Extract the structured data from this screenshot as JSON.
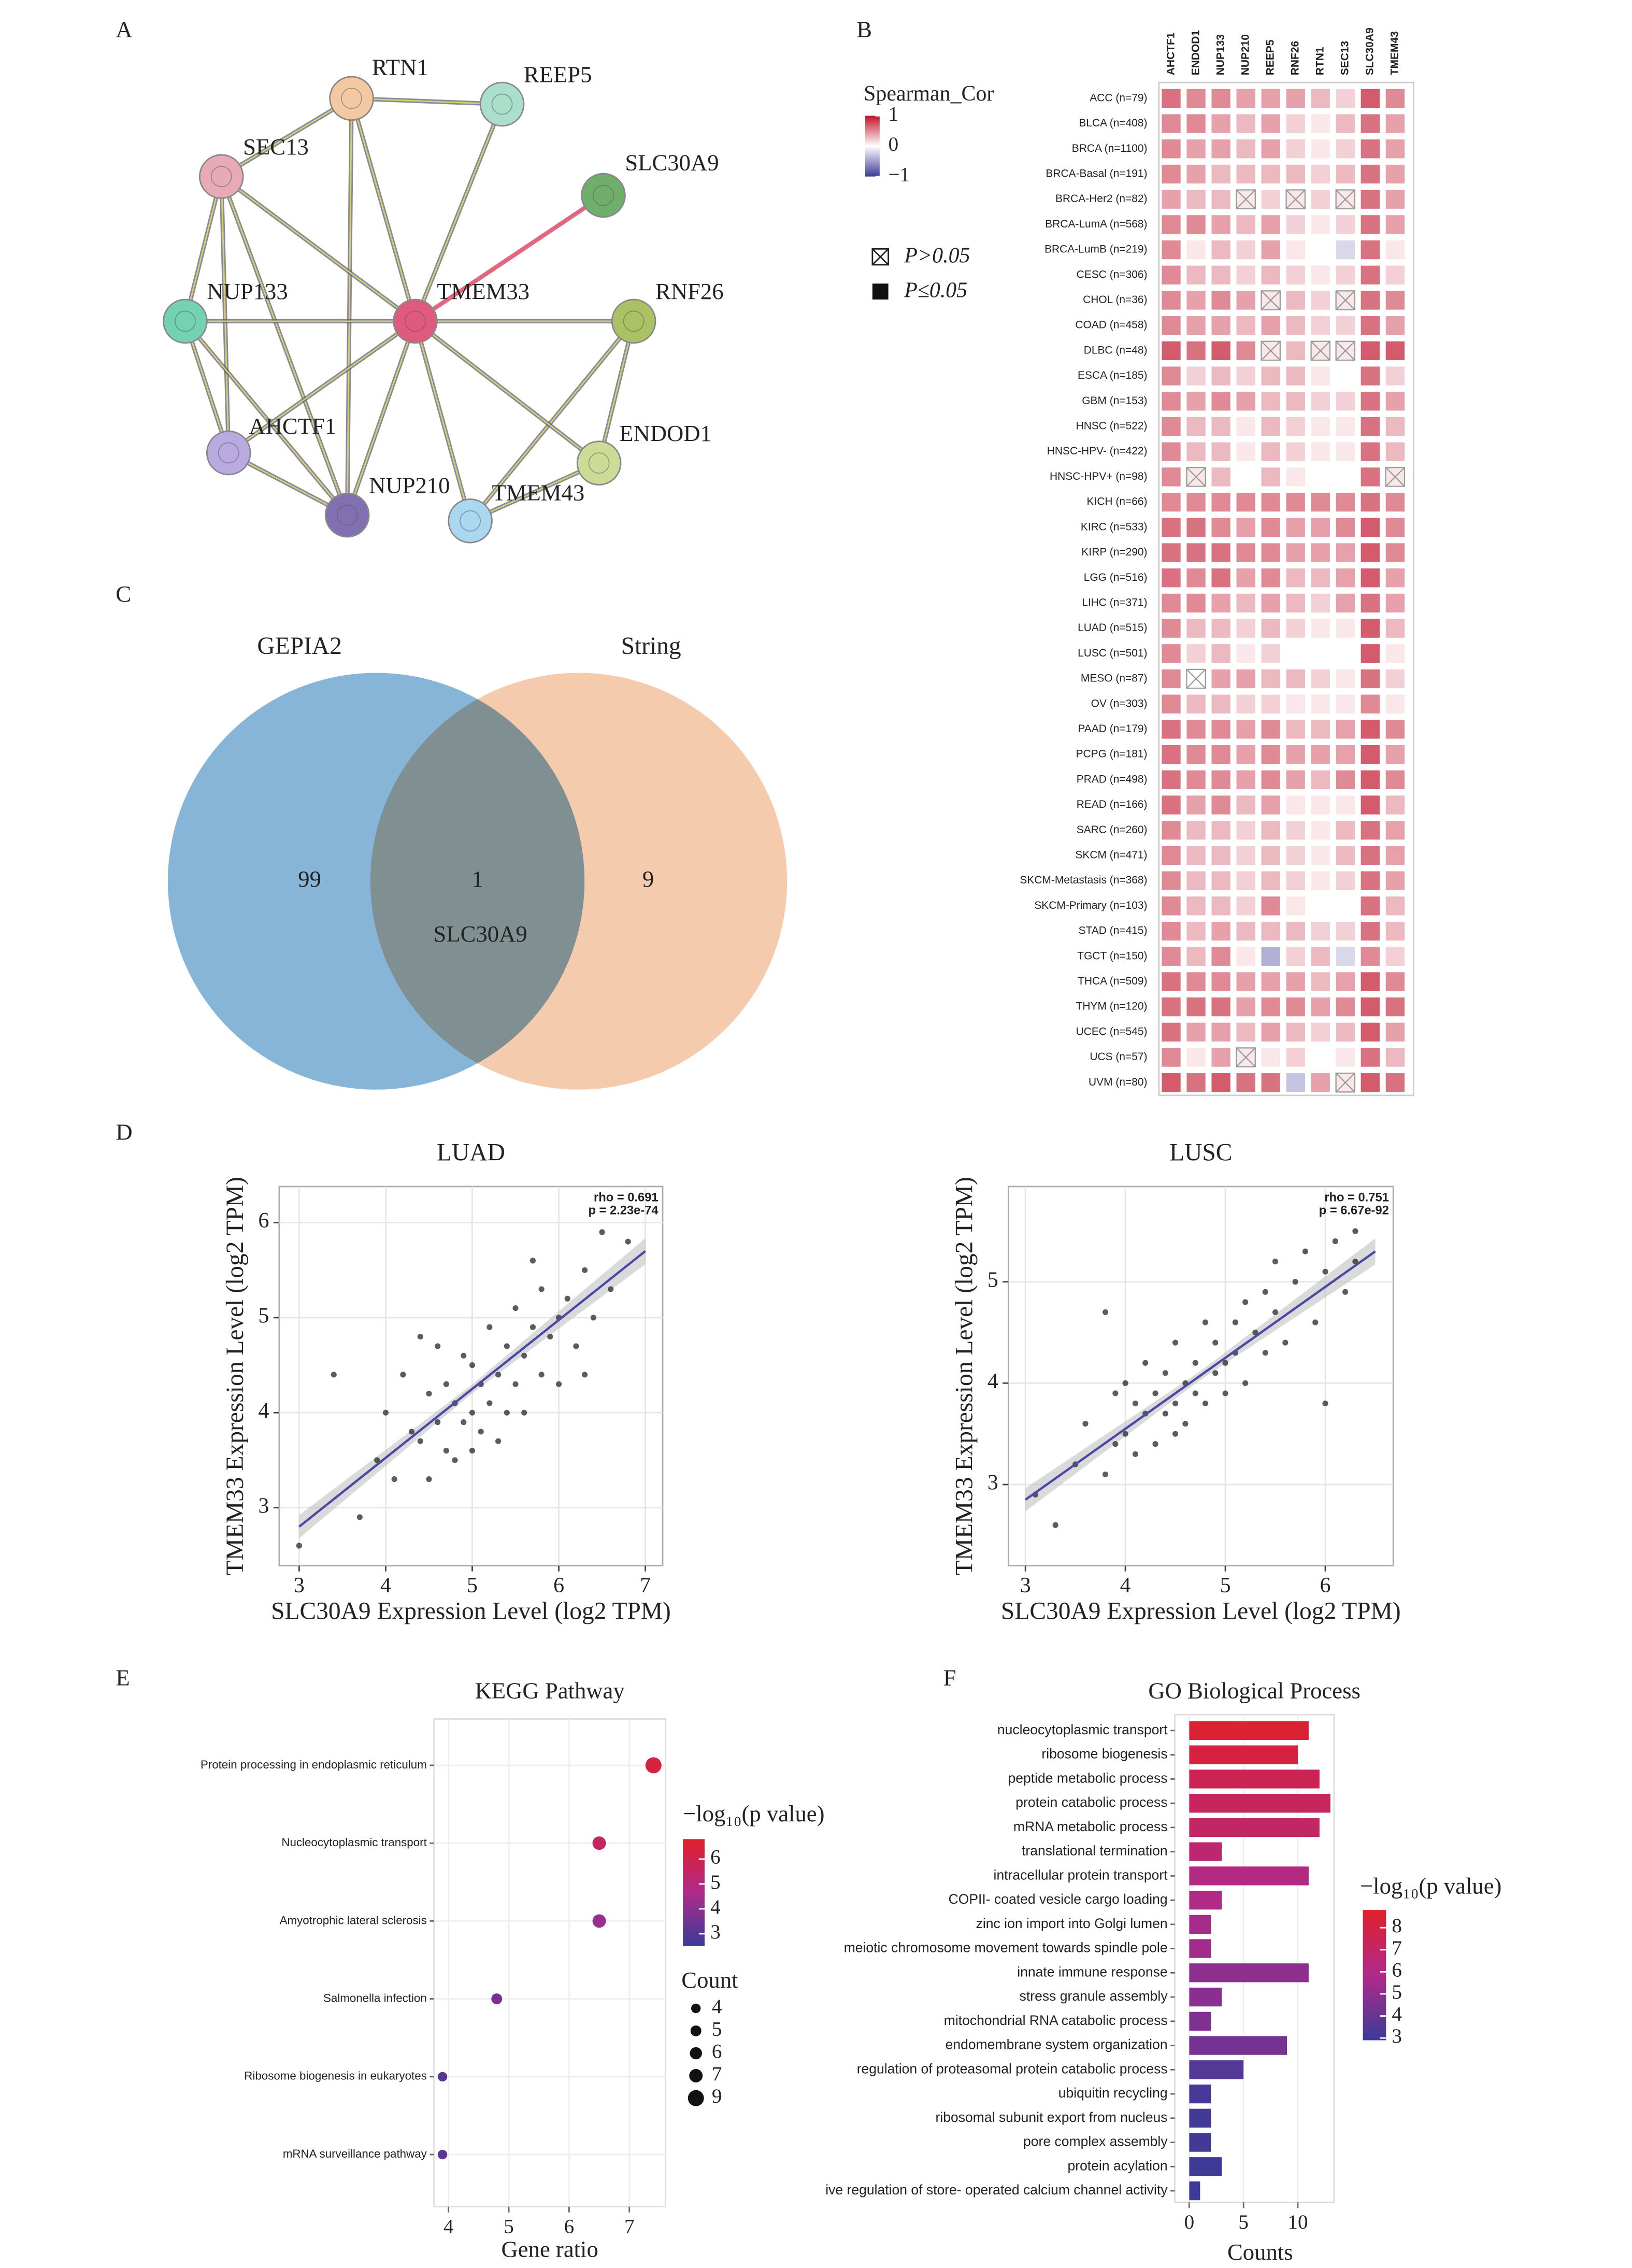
{
  "chart_data": [
    {
      "type": "network",
      "panel": "A",
      "nodes": [
        {
          "label": "RTN1",
          "color": "#f2c9a2"
        },
        {
          "label": "REEP5",
          "color": "#aadfcc"
        },
        {
          "label": "SEC13",
          "color": "#e9aab8"
        },
        {
          "label": "SLC30A9",
          "color": "#6fae6b"
        },
        {
          "label": "NUP133",
          "color": "#72d2b2"
        },
        {
          "label": "TMEM33",
          "color": "#e05a80"
        },
        {
          "label": "RNF26",
          "color": "#abc264"
        },
        {
          "label": "AHCTF1",
          "color": "#b9aae2"
        },
        {
          "label": "NUP210",
          "color": "#8070b2"
        },
        {
          "label": "ENDOD1",
          "color": "#ccdb96"
        },
        {
          "label": "TMEM43",
          "color": "#a9d8f0"
        }
      ]
    },
    {
      "type": "heatmap",
      "panel": "B",
      "columns": [
        "AHCTF1",
        "ENDOD1",
        "NUP133",
        "NUP210",
        "REEP5",
        "RNF26",
        "RTN1",
        "SEC13",
        "SLC30A9",
        "TMEM43"
      ],
      "rows": [
        "ACC (n=79)",
        "BLCA (n=408)",
        "BRCA (n=1100)",
        "BRCA-Basal (n=191)",
        "BRCA-Her2 (n=82)",
        "BRCA-LumA (n=568)",
        "BRCA-LumB (n=219)",
        "CESC (n=306)",
        "CHOL (n=36)",
        "COAD (n=458)",
        "DLBC (n=48)",
        "ESCA (n=185)",
        "GBM (n=153)",
        "HNSC (n=522)",
        "HNSC-HPV- (n=422)",
        "HNSC-HPV+ (n=98)",
        "KICH (n=66)",
        "KIRC (n=533)",
        "KIRP (n=290)",
        "LGG (n=516)",
        "LIHC (n=371)",
        "LUAD (n=515)",
        "LUSC (n=501)",
        "MESO (n=87)",
        "OV (n=303)",
        "PAAD (n=179)",
        "PCPG (n=181)",
        "PRAD (n=498)",
        "READ (n=166)",
        "SARC (n=260)",
        "SKCM (n=471)",
        "SKCM-Metastasis (n=368)",
        "SKCM-Primary (n=103)",
        "STAD (n=415)",
        "TGCT (n=150)",
        "THCA (n=509)",
        "THYM (n=120)",
        "UCEC (n=545)",
        "UCS (n=57)",
        "UVM (n=80)"
      ],
      "values": [
        [
          0.6,
          0.5,
          0.5,
          0.4,
          0.4,
          0.4,
          0.3,
          0.2,
          0.7,
          0.5
        ],
        [
          0.5,
          0.5,
          0.4,
          0.3,
          0.4,
          0.2,
          0.1,
          0.3,
          0.6,
          0.4
        ],
        [
          0.5,
          0.4,
          0.4,
          0.3,
          0.4,
          0.2,
          0.1,
          0.2,
          0.6,
          0.4
        ],
        [
          0.5,
          0.4,
          0.3,
          0.3,
          0.3,
          0.3,
          0.2,
          0.3,
          0.6,
          0.4
        ],
        [
          0.4,
          0.3,
          0.3,
          0.1,
          0.2,
          0.1,
          0.2,
          0.1,
          0.6,
          0.4
        ],
        [
          0.5,
          0.5,
          0.4,
          0.3,
          0.4,
          0.2,
          0.1,
          0.2,
          0.6,
          0.4
        ],
        [
          0.5,
          0.1,
          0.3,
          0.2,
          0.4,
          0.1,
          0,
          -0.2,
          0.6,
          0.1
        ],
        [
          0.5,
          0.3,
          0.3,
          0.2,
          0.3,
          0.2,
          0.1,
          0.2,
          0.6,
          0.2
        ],
        [
          0.5,
          0.4,
          0.5,
          0.4,
          0.1,
          0.3,
          0.2,
          0.1,
          0.6,
          0.5
        ],
        [
          0.5,
          0.4,
          0.4,
          0.3,
          0.4,
          0.3,
          0.2,
          0.2,
          0.6,
          0.4
        ],
        [
          0.7,
          0.6,
          0.7,
          0.5,
          0.1,
          0.3,
          0.1,
          0.1,
          0.7,
          0.7
        ],
        [
          0.5,
          0.2,
          0.3,
          0.2,
          0.3,
          0.3,
          0.1,
          0,
          0.6,
          0.2
        ],
        [
          0.5,
          0.4,
          0.5,
          0.4,
          0.3,
          0.3,
          0.2,
          0.2,
          0.6,
          0.4
        ],
        [
          0.5,
          0.3,
          0.3,
          0.1,
          0.3,
          0.2,
          0.1,
          0.1,
          0.6,
          0.3
        ],
        [
          0.5,
          0.3,
          0.3,
          0.1,
          0.3,
          0.2,
          0.1,
          0.1,
          0.6,
          0.3
        ],
        [
          0.5,
          0.1,
          0.3,
          0,
          0.3,
          0.1,
          0,
          0,
          0.6,
          0.1
        ],
        [
          0.5,
          0.5,
          0.5,
          0.5,
          0.5,
          0.5,
          0.5,
          0.5,
          0.6,
          0.5
        ],
        [
          0.6,
          0.6,
          0.5,
          0.4,
          0.5,
          0.4,
          0.4,
          0.5,
          0.7,
          0.5
        ],
        [
          0.6,
          0.6,
          0.6,
          0.5,
          0.5,
          0.4,
          0.4,
          0.4,
          0.7,
          0.5
        ],
        [
          0.6,
          0.5,
          0.6,
          0.4,
          0.5,
          0.3,
          0.3,
          0.4,
          0.7,
          0.4
        ],
        [
          0.5,
          0.5,
          0.4,
          0.3,
          0.4,
          0.3,
          0.2,
          0.4,
          0.6,
          0.4
        ],
        [
          0.5,
          0.3,
          0.3,
          0.2,
          0.3,
          0.2,
          0.1,
          0.1,
          0.7,
          0.3
        ],
        [
          0.5,
          0.2,
          0.3,
          0.1,
          0.2,
          0,
          0,
          0,
          0.7,
          0.1
        ],
        [
          0.5,
          0,
          0.4,
          0.4,
          0.3,
          0.3,
          0.2,
          0.1,
          0.6,
          0.2
        ],
        [
          0.5,
          0.3,
          0.3,
          0.2,
          0.2,
          0.1,
          0.1,
          0.1,
          0.5,
          0.1
        ],
        [
          0.6,
          0.5,
          0.5,
          0.4,
          0.5,
          0.3,
          0.3,
          0.4,
          0.7,
          0.5
        ],
        [
          0.6,
          0.5,
          0.5,
          0.4,
          0.5,
          0.4,
          0.4,
          0.4,
          0.7,
          0.4
        ],
        [
          0.6,
          0.5,
          0.5,
          0.4,
          0.5,
          0.4,
          0.3,
          0.5,
          0.7,
          0.5
        ],
        [
          0.6,
          0.4,
          0.5,
          0.3,
          0.4,
          0.1,
          0.1,
          0.1,
          0.7,
          0.3
        ],
        [
          0.5,
          0.3,
          0.3,
          0.2,
          0.3,
          0.2,
          0.1,
          0.3,
          0.6,
          0.4
        ],
        [
          0.5,
          0.3,
          0.3,
          0.2,
          0.3,
          0.2,
          0.1,
          0.3,
          0.6,
          0.4
        ],
        [
          0.5,
          0.3,
          0.3,
          0.2,
          0.3,
          0.2,
          0.1,
          0.2,
          0.6,
          0.4
        ],
        [
          0.5,
          0.3,
          0.3,
          0.2,
          0.5,
          0.1,
          0,
          0,
          0.6,
          0.3
        ],
        [
          0.5,
          0.3,
          0.4,
          0.3,
          0.3,
          0.3,
          0.2,
          0.2,
          0.6,
          0.3
        ],
        [
          0.5,
          0.3,
          0.5,
          0.1,
          -0.4,
          0.2,
          0.3,
          -0.2,
          0.5,
          0.2
        ],
        [
          0.6,
          0.5,
          0.5,
          0.4,
          0.4,
          0.4,
          0.3,
          0.4,
          0.7,
          0.5
        ],
        [
          0.6,
          0.6,
          0.6,
          0.4,
          0.5,
          0.5,
          0.4,
          0.5,
          0.7,
          0.6
        ],
        [
          0.6,
          0.4,
          0.4,
          0.3,
          0.4,
          0.3,
          0.2,
          0.3,
          0.7,
          0.4
        ],
        [
          0.5,
          0.1,
          0.4,
          0.1,
          0.1,
          0.2,
          0,
          0.1,
          0.6,
          0.3
        ],
        [
          0.7,
          0.6,
          0.7,
          0.6,
          0.6,
          -0.3,
          0.4,
          0.1,
          0.7,
          0.6
        ]
      ],
      "nonsignificant": [
        [
          4,
          3
        ],
        [
          4,
          5
        ],
        [
          4,
          7
        ],
        [
          8,
          4
        ],
        [
          8,
          7
        ],
        [
          10,
          4
        ],
        [
          10,
          6
        ],
        [
          10,
          7
        ],
        [
          15,
          1
        ],
        [
          15,
          9
        ],
        [
          23,
          1
        ],
        [
          38,
          3
        ],
        [
          39,
          7
        ]
      ],
      "legend_title": "Spearman_Cor",
      "clim": [
        -1,
        1
      ],
      "colorbar_ticks": [
        1,
        0,
        {
          "value": -1,
          "label": "−1"
        }
      ],
      "colors": [
        "#3b3b98",
        "#ffffff",
        "#c0142c"
      ],
      "legend_labels": [
        "P>0.05",
        "P≤0.05"
      ]
    },
    {
      "type": "venn",
      "panel": "C",
      "sets": [
        {
          "name": "GEPIA2",
          "color": "#80b1d6"
        },
        {
          "name": "String",
          "color": "#f1ba92"
        }
      ],
      "values": [
        99,
        1,
        9
      ],
      "intersection_label": "SLC30A9"
    },
    {
      "type": "scatter",
      "panel": "D",
      "title": "LUAD",
      "x": [
        3.0,
        3.4,
        3.7,
        3.9,
        4.0,
        4.1,
        4.2,
        4.3,
        4.4,
        4.5,
        4.5,
        4.6,
        4.6,
        4.7,
        4.7,
        4.8,
        4.8,
        4.9,
        4.9,
        5.0,
        5.0,
        5.0,
        5.1,
        5.1,
        5.2,
        5.2,
        5.3,
        5.3,
        5.4,
        5.4,
        5.5,
        5.5,
        5.6,
        5.6,
        5.7,
        5.8,
        5.8,
        5.9,
        6.0,
        6.0,
        6.1,
        6.2,
        6.3,
        6.4,
        6.5,
        6.6,
        6.8,
        4.4,
        5.7,
        6.3
      ],
      "y": [
        2.6,
        4.4,
        2.9,
        3.5,
        4.0,
        3.3,
        4.4,
        3.8,
        3.7,
        4.2,
        3.3,
        4.7,
        3.9,
        3.6,
        4.3,
        4.1,
        3.5,
        4.6,
        3.9,
        4.0,
        4.5,
        3.6,
        4.3,
        3.8,
        4.9,
        4.1,
        4.4,
        3.7,
        4.7,
        4.0,
        4.3,
        5.1,
        4.6,
        4.0,
        4.9,
        4.4,
        5.3,
        4.8,
        5.0,
        4.3,
        5.2,
        4.7,
        5.5,
        5.0,
        5.9,
        5.3,
        5.8,
        4.8,
        5.6,
        4.4
      ],
      "trend": {
        "x": [
          3,
          7
        ],
        "y": [
          2.8,
          5.7
        ]
      },
      "color": "#333333",
      "trend_color": "#4a4aa6",
      "xlim": [
        2.77,
        7.2
      ],
      "ylim": [
        2.39,
        6.38
      ],
      "xticks": [
        3,
        4,
        5,
        6,
        7
      ],
      "yticks": [
        3,
        4,
        5,
        6
      ],
      "grid": true,
      "xlabel": "SLC30A9 Expression Level (log2 TPM)",
      "ylabel": "TMEM33 Expression Level (log2 TPM)",
      "annotations": [
        "rho = 0.691",
        "p = 2.23e-74"
      ]
    },
    {
      "type": "scatter",
      "title": "LUSC",
      "x": [
        3.1,
        3.3,
        3.5,
        3.6,
        3.8,
        3.9,
        3.9,
        4.0,
        4.0,
        4.1,
        4.1,
        4.2,
        4.2,
        4.3,
        4.3,
        4.4,
        4.4,
        4.5,
        4.5,
        4.5,
        4.6,
        4.6,
        4.7,
        4.7,
        4.8,
        4.8,
        4.9,
        4.9,
        5.0,
        5.0,
        5.1,
        5.1,
        5.2,
        5.2,
        5.3,
        5.4,
        5.4,
        5.5,
        5.6,
        5.7,
        5.8,
        5.9,
        6.0,
        6.1,
        6.2,
        6.3,
        6.3,
        3.8,
        5.5,
        6.0
      ],
      "y": [
        2.9,
        2.6,
        3.2,
        3.6,
        3.1,
        3.9,
        3.4,
        3.5,
        4.0,
        3.8,
        3.3,
        3.7,
        4.2,
        3.9,
        3.4,
        4.1,
        3.7,
        3.8,
        4.4,
        3.5,
        4.0,
        3.6,
        4.2,
        3.9,
        4.6,
        3.8,
        4.1,
        4.4,
        4.2,
        3.9,
        4.6,
        4.3,
        4.0,
        4.8,
        4.5,
        4.3,
        4.9,
        4.7,
        4.4,
        5.0,
        5.3,
        4.6,
        5.1,
        5.4,
        4.9,
        5.5,
        5.2,
        4.7,
        5.2,
        3.8
      ],
      "trend": {
        "x": [
          3,
          6.5
        ],
        "y": [
          2.85,
          5.3
        ]
      },
      "color": "#333333",
      "trend_color": "#4a4aa6",
      "xlim": [
        2.83,
        6.68
      ],
      "ylim": [
        2.2,
        5.94
      ],
      "xticks": [
        3,
        4,
        5,
        6
      ],
      "yticks": [
        3,
        4,
        5
      ],
      "grid": true,
      "xlabel": "SLC30A9 Expression Level (log2 TPM)",
      "ylabel": "TMEM33 Expression Level (log2 TPM)",
      "annotations": [
        "rho = 0.751",
        "p = 6.67e-92"
      ]
    },
    {
      "type": "dot",
      "panel": "E",
      "title": "KEGG Pathway",
      "categories": [
        "Protein processing in endoplasmic reticulum",
        "Nucleocytoplasmic transport",
        "Amyotrophic lateral sclerosis",
        "Salmonella infection",
        "Ribosome biogenesis in eukaryotes",
        "mRNA surveillance pathway"
      ],
      "values": [
        7.4,
        6.5,
        6.5,
        4.8,
        3.9,
        3.9
      ],
      "count": [
        9,
        7,
        7,
        5,
        4,
        4
      ],
      "neg_log10_p": [
        6.3,
        5.6,
        4.2,
        3.6,
        3.1,
        3.1
      ],
      "xlim": [
        3.76,
        7.6
      ],
      "xticks": [
        4,
        5,
        6,
        7
      ],
      "grid": true,
      "xlabel": "Gene ratio",
      "colorbar_title": "−log₁₀(p value)",
      "clim": [
        2.5,
        6.8
      ],
      "colorbar_ticks": [
        6,
        5,
        4,
        3
      ],
      "colormap": [
        "#3b3b98",
        "#b02a8a",
        "#e0202a"
      ],
      "size_legend_title": "Count",
      "size_legend_ticks": [
        4,
        5,
        6,
        7,
        9
      ]
    },
    {
      "type": "barh",
      "panel": "F",
      "title": "GO Biological Process",
      "categories": [
        "nucleocytoplasmic transport",
        "ribosome biogenesis",
        "peptide metabolic process",
        "protein catabolic process",
        "mRNA metabolic process",
        "translational termination",
        "intracellular protein transport",
        "COPII- coated vesicle cargo loading",
        "zinc ion import into Golgi lumen",
        "meiotic chromosome movement towards spindle pole",
        "innate immune response",
        "stress granule assembly",
        "mitochondrial RNA catabolic process",
        "endomembrane system organization",
        "regulation of proteasomal protein catabolic process",
        "ubiquitin recycling",
        "ribosomal subunit export from nucleus",
        "pore complex assembly",
        "protein acylation",
        "ive regulation of store- operated calcium channel activity"
      ],
      "values": [
        11,
        10,
        12,
        13,
        12,
        3,
        11,
        3,
        2,
        2,
        11,
        3,
        2,
        9,
        5,
        2,
        2,
        2,
        3,
        1
      ],
      "neg_log10_p": [
        8.5,
        8.1,
        7.5,
        7.2,
        7.0,
        6.6,
        6.1,
        5.9,
        5.6,
        5.5,
        5.0,
        4.9,
        4.6,
        4.4,
        3.5,
        3.2,
        3.1,
        3.1,
        3.0,
        3.0
      ],
      "xlim": [
        -1.33,
        13.33
      ],
      "xticks": [
        0,
        5,
        10
      ],
      "grid": true,
      "xlabel": "Counts",
      "colorbar_title": "−log₁₀(p value)",
      "clim": [
        2.9,
        8.8
      ],
      "colorbar_ticks": [
        8,
        7,
        6,
        5,
        4,
        3
      ],
      "colormap": [
        "#3b3b98",
        "#b02a8a",
        "#e0202a"
      ]
    }
  ]
}
